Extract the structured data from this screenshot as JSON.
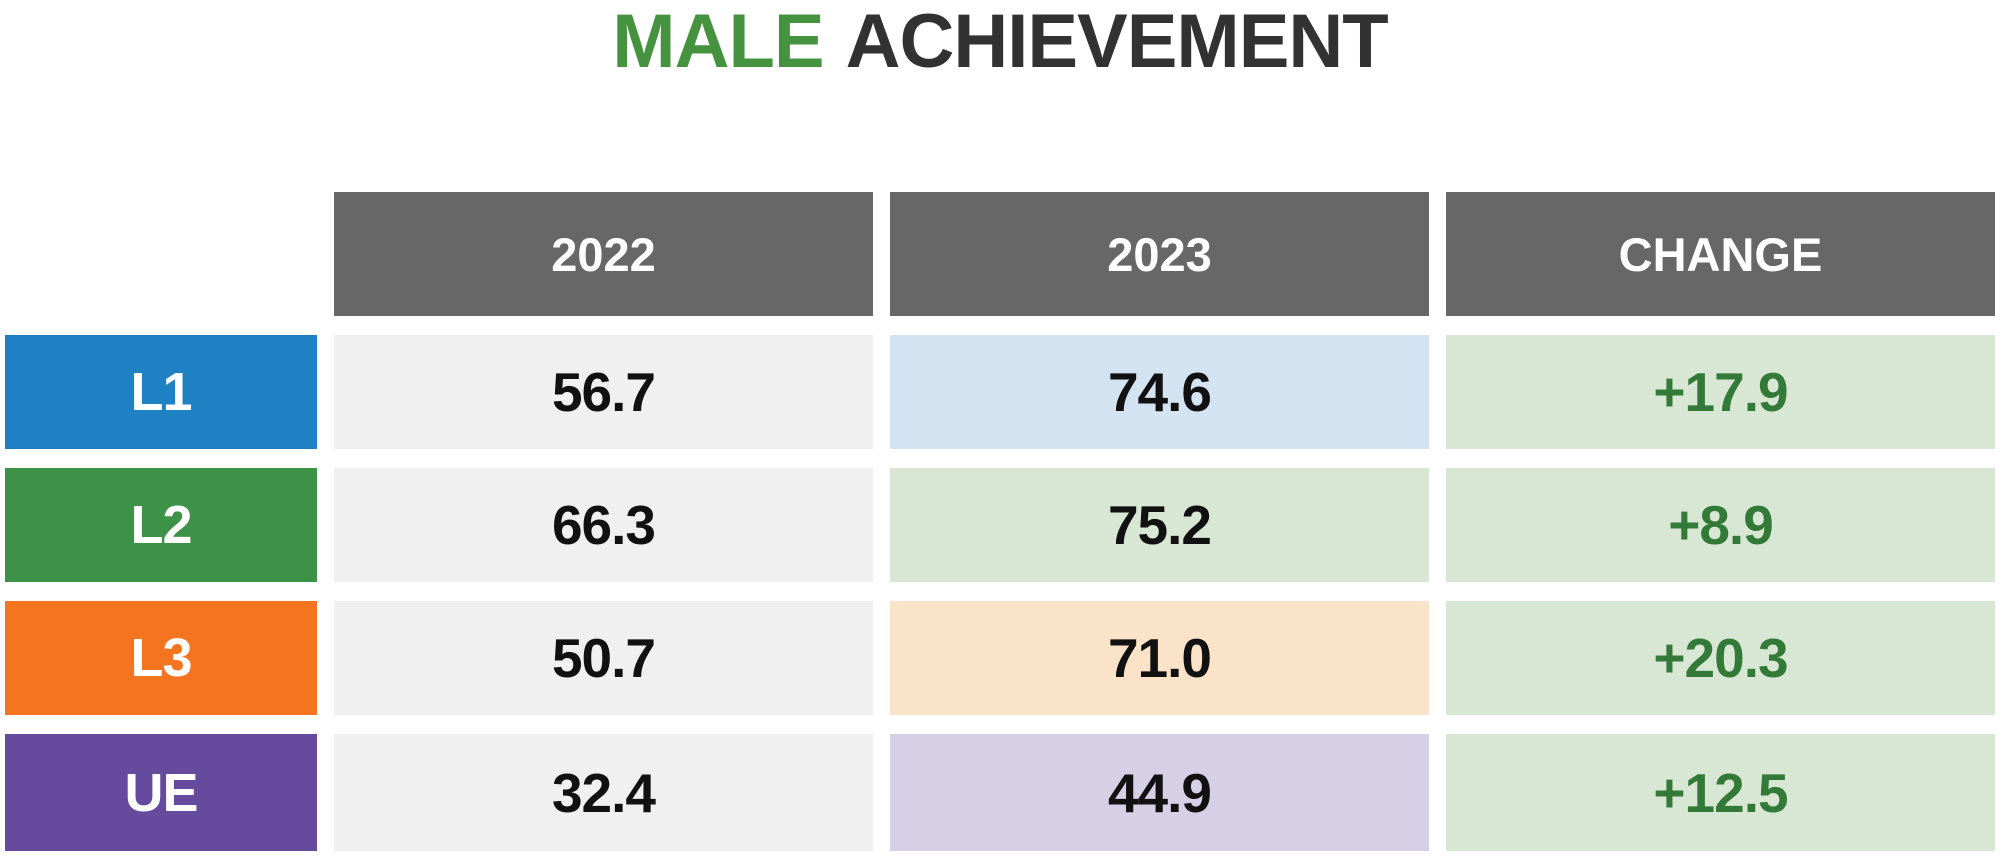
{
  "title": {
    "highlight": "MALE",
    "rest": "ACHIEVEMENT"
  },
  "colors": {
    "title_green": "#45923f",
    "title_dark": "#323232",
    "header_bg": "#676767",
    "header_text": "#ffffff",
    "row_l1": "#1e81c4",
    "row_l2": "#3e9247",
    "row_l3": "#f5741f",
    "row_ue": "#654a9e",
    "cell_gray": "#f0f0f0",
    "tint_l1": "#d3e3f1",
    "tint_l2": "#d8e7d3",
    "tint_l3": "#fbe3c9",
    "tint_ue": "#d6d0e6",
    "change_bg": "#d8e7d3",
    "change_text": "#337a38",
    "value_text": "#111111"
  },
  "table": {
    "column_headers": [
      "2022",
      "2023",
      "CHANGE"
    ],
    "rows": [
      {
        "label": "L1",
        "y2022": "56.7",
        "y2023": "74.6",
        "change": "+17.9"
      },
      {
        "label": "L2",
        "y2022": "66.3",
        "y2023": "75.2",
        "change": "+8.9"
      },
      {
        "label": "L3",
        "y2022": "50.7",
        "y2023": "71.0",
        "change": "+20.3"
      },
      {
        "label": "UE",
        "y2022": "32.4",
        "y2023": "44.9",
        "change": "+12.5"
      }
    ]
  },
  "chart_data": {
    "type": "table",
    "title": "MALE ACHIEVEMENT",
    "categories": [
      "L1",
      "L2",
      "L3",
      "UE"
    ],
    "series": [
      {
        "name": "2022",
        "values": [
          56.7,
          66.3,
          50.7,
          32.4
        ]
      },
      {
        "name": "2023",
        "values": [
          74.6,
          75.2,
          71.0,
          44.9
        ]
      },
      {
        "name": "CHANGE",
        "values": [
          17.9,
          8.9,
          20.3,
          12.5
        ]
      }
    ],
    "layout": "rows are achievement levels; columns are years plus year-over-year change"
  }
}
